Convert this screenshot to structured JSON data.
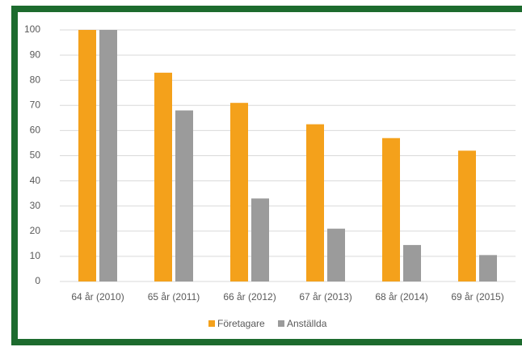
{
  "chart_data": {
    "type": "bar",
    "categories": [
      "64 år (2010)",
      "65 år (2011)",
      "66 år (2012)",
      "67 år (2013)",
      "68 år (2014)",
      "69 år (2015)"
    ],
    "series": [
      {
        "name": "Företagare",
        "color": "#f4a11b",
        "values": [
          100,
          83,
          71,
          62.5,
          57,
          52
        ]
      },
      {
        "name": "Anställda",
        "color": "#9b9b9b",
        "values": [
          100,
          68,
          33,
          21,
          14.5,
          10.5
        ]
      }
    ],
    "ylim": [
      0,
      100
    ],
    "yticks": [
      0,
      10,
      20,
      30,
      40,
      50,
      60,
      70,
      80,
      90,
      100
    ],
    "grid": true,
    "legend": "bottom"
  }
}
